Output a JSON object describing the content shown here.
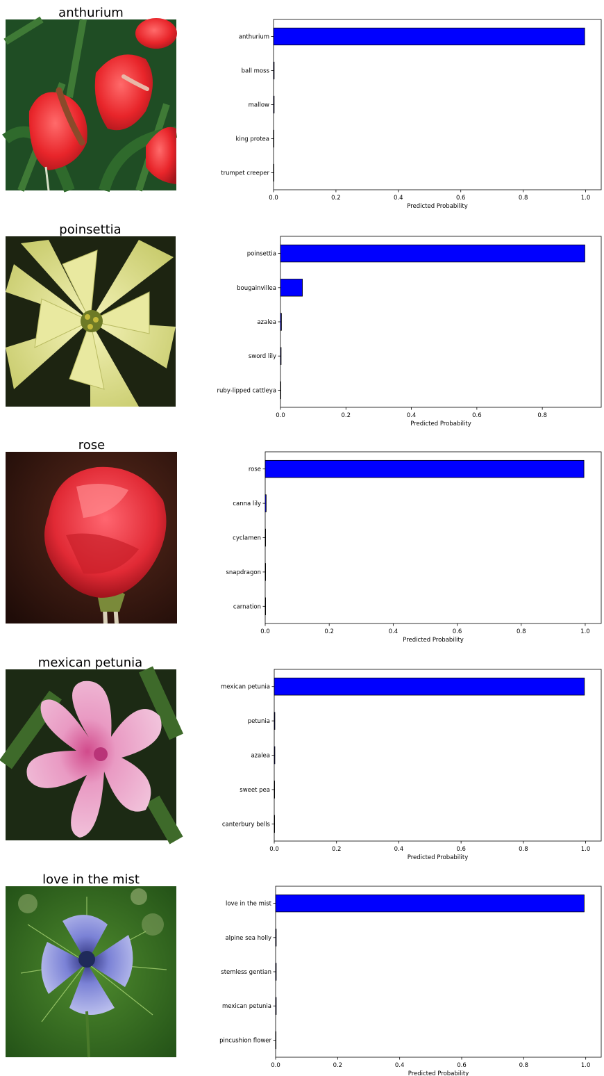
{
  "chart_data": [
    {
      "type": "bar",
      "title": "anthurium",
      "image": "anthurium-photo",
      "categories": [
        "anthurium",
        "ball moss",
        "mallow",
        "king protea",
        "trumpet creeper"
      ],
      "values": [
        0.997,
        0.002,
        0.002,
        0.0005,
        0.0003
      ],
      "xlabel": "Predicted Probability",
      "xlim": [
        0,
        1.05
      ],
      "xticks": [
        "0.0",
        "0.2",
        "0.4",
        "0.6",
        "0.8",
        "1.0"
      ],
      "bar_color": "#0000ff",
      "grid": false
    },
    {
      "type": "bar",
      "title": "poinsettia",
      "image": "poinsettia-photo",
      "categories": [
        "poinsettia",
        "bougainvillea",
        "azalea",
        "sword lily",
        "ruby-lipped cattleya"
      ],
      "values": [
        0.93,
        0.067,
        0.003,
        0.002,
        0.0005
      ],
      "xlabel": "Predicted Probability",
      "xlim": [
        0,
        0.98
      ],
      "xticks": [
        "0.0",
        "0.2",
        "0.4",
        "0.6",
        "0.8"
      ],
      "bar_color": "#0000ff",
      "grid": false
    },
    {
      "type": "bar",
      "title": "rose",
      "image": "rose-photo",
      "categories": [
        "rose",
        "canna lily",
        "cyclamen",
        "snapdragon",
        "carnation"
      ],
      "values": [
        0.996,
        0.003,
        0.0005,
        0.0003,
        0.0002
      ],
      "xlabel": "Predicted Probability",
      "xlim": [
        0,
        1.05
      ],
      "xticks": [
        "0.0",
        "0.2",
        "0.4",
        "0.6",
        "0.8",
        "1.0"
      ],
      "bar_color": "#0000ff",
      "grid": false
    },
    {
      "type": "bar",
      "title": "mexican petunia",
      "image": "mexican-petunia-photo",
      "categories": [
        "mexican petunia",
        "petunia",
        "azalea",
        "sweet pea",
        "canterbury bells"
      ],
      "values": [
        0.996,
        0.002,
        0.002,
        0.0003,
        0.0002
      ],
      "xlabel": "Predicted Probability",
      "xlim": [
        0,
        1.05
      ],
      "xticks": [
        "0.0",
        "0.2",
        "0.4",
        "0.6",
        "0.8",
        "1.0"
      ],
      "bar_color": "#0000ff",
      "grid": false
    },
    {
      "type": "bar",
      "title": "love in the mist",
      "image": "love-in-the-mist-photo",
      "categories": [
        "love in the mist",
        "alpine sea holly",
        "stemless gentian",
        "mexican petunia",
        "pincushion flower"
      ],
      "values": [
        0.995,
        0.002,
        0.002,
        0.002,
        0.0003
      ],
      "xlabel": "Predicted Probability",
      "xlim": [
        0,
        1.05
      ],
      "xticks": [
        "0.0",
        "0.2",
        "0.4",
        "0.6",
        "0.8",
        "1.0"
      ],
      "bar_color": "#0000ff",
      "grid": false
    }
  ]
}
